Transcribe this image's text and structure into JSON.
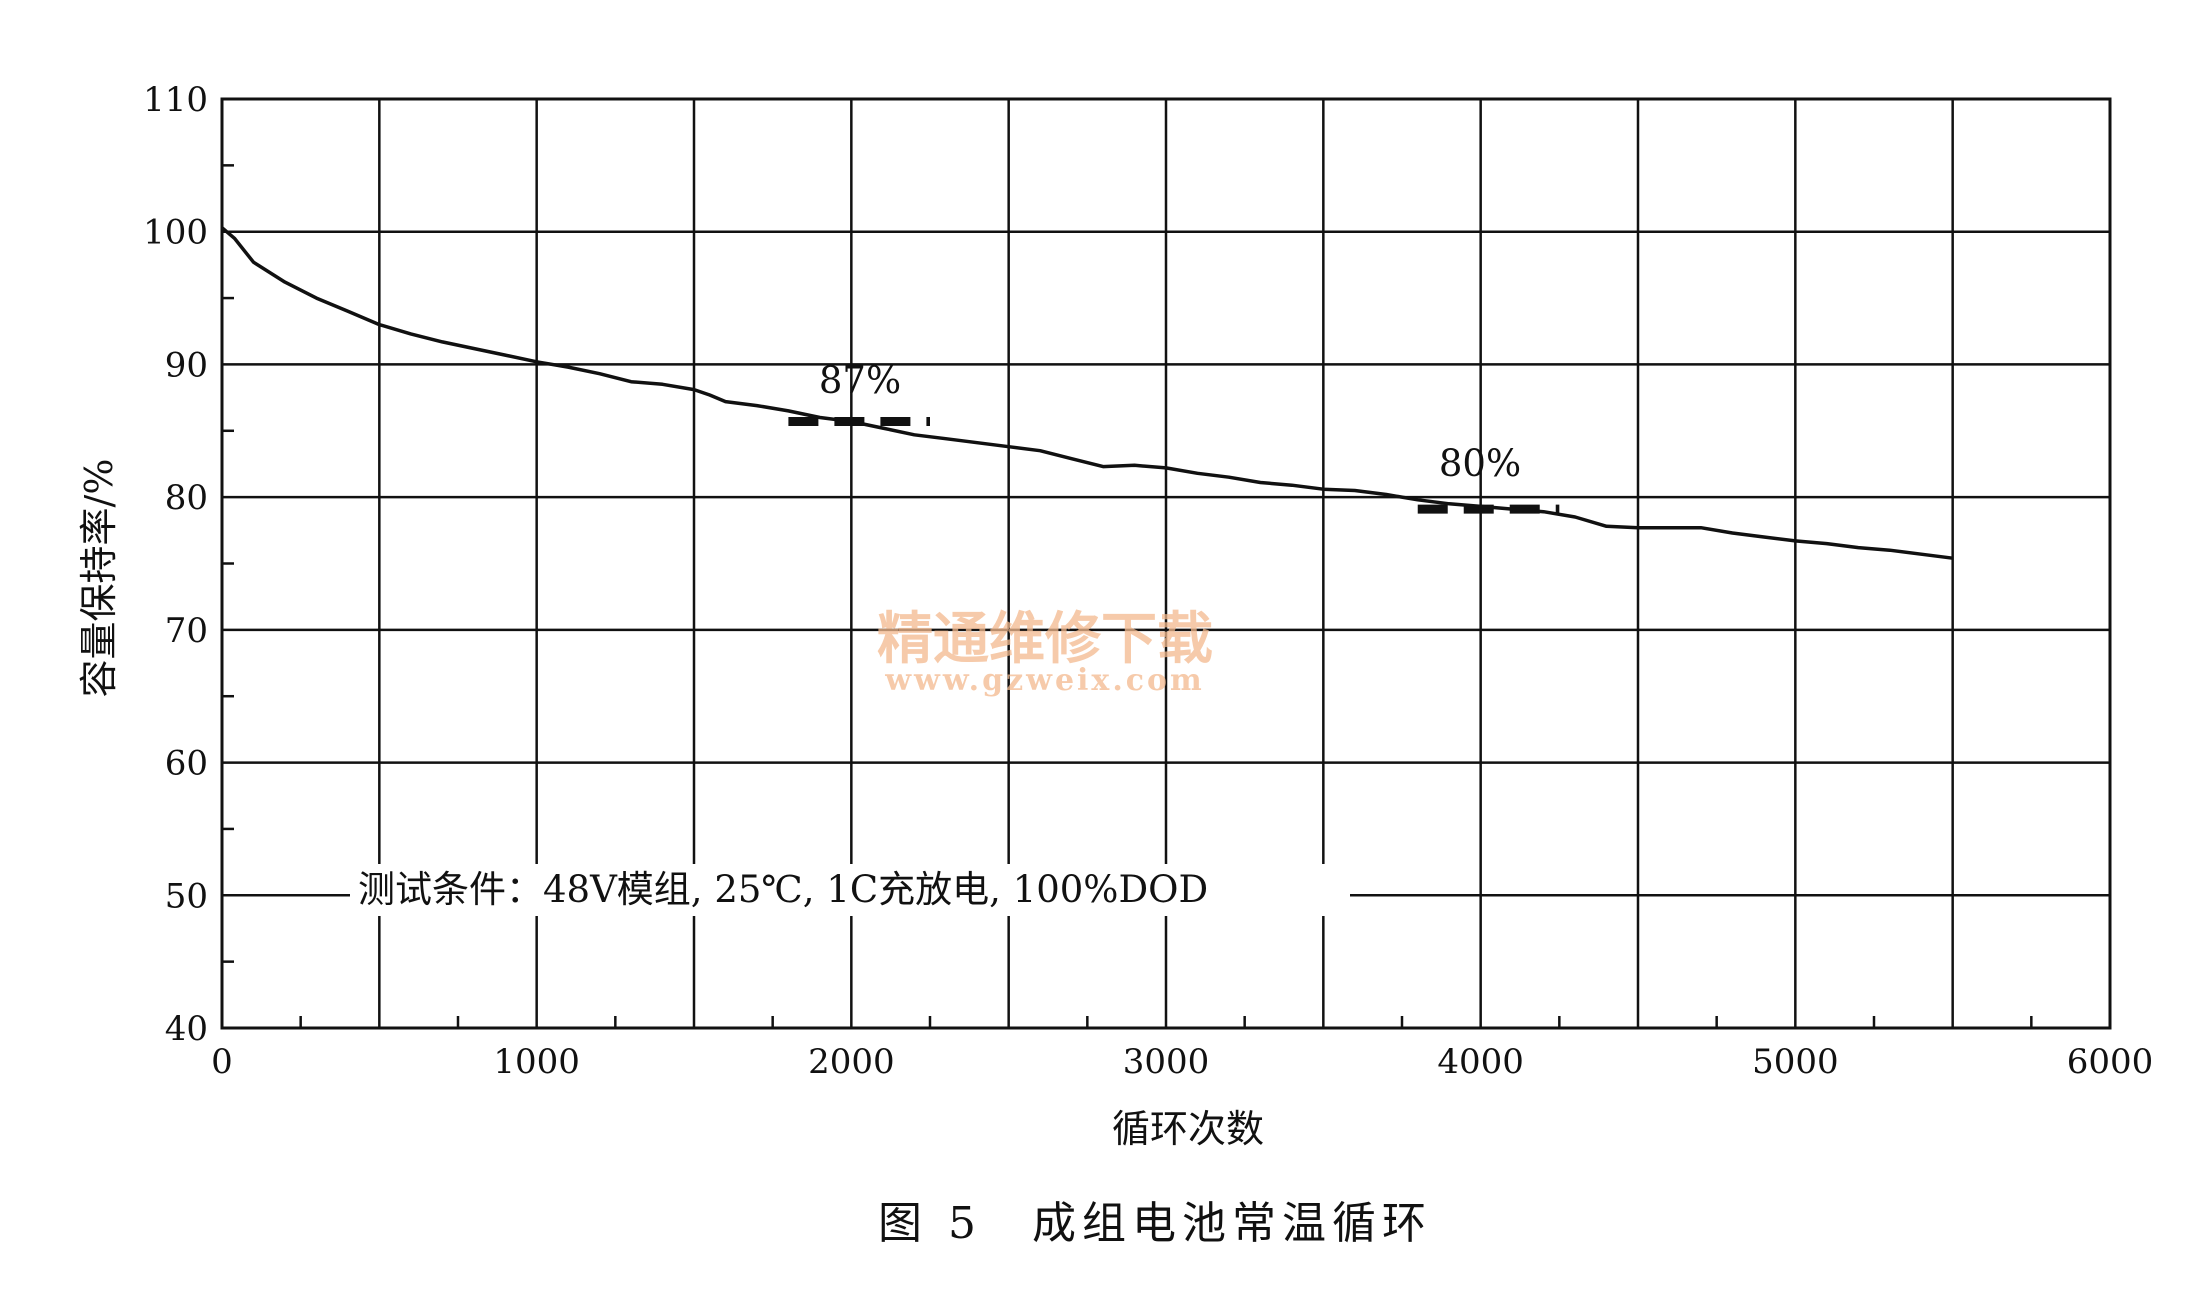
{
  "chart_data": {
    "type": "line",
    "xlabel": "循环次数",
    "ylabel": "容量保持率/%",
    "xlim": [
      0,
      6000
    ],
    "ylim": [
      40,
      110
    ],
    "x_ticks": [
      "0",
      "1000",
      "2000",
      "3000",
      "4000",
      "5000",
      "6000"
    ],
    "y_ticks": [
      "40",
      "50",
      "60",
      "70",
      "80",
      "90",
      "100",
      "110"
    ],
    "grid": true,
    "series": [
      {
        "name": "",
        "x": [
          0,
          40,
          80,
          100,
          200,
          300,
          400,
          500,
          600,
          700,
          800,
          900,
          1000,
          1100,
          1200,
          1300,
          1400,
          1500,
          1550,
          1600,
          1700,
          1800,
          1900,
          2000,
          2100,
          2200,
          2300,
          2400,
          2500,
          2600,
          2700,
          2800,
          2900,
          3000,
          3100,
          3200,
          3300,
          3400,
          3500,
          3600,
          3700,
          3800,
          3900,
          4000,
          4100,
          4200,
          4300,
          4400,
          4500,
          4600,
          4700,
          4800,
          4900,
          5000,
          5100,
          5200,
          5300,
          5400,
          5500
        ],
        "y": [
          100.3,
          99.5,
          98.3,
          97.7,
          96.2,
          95.0,
          94.0,
          93.0,
          92.3,
          91.7,
          91.2,
          90.7,
          90.2,
          89.8,
          89.3,
          88.7,
          88.5,
          88.1,
          87.7,
          87.2,
          86.9,
          86.5,
          86.0,
          85.7,
          85.2,
          84.7,
          84.4,
          84.1,
          83.8,
          83.5,
          82.9,
          82.3,
          82.4,
          82.2,
          81.8,
          81.5,
          81.1,
          80.9,
          80.6,
          80.5,
          80.2,
          79.8,
          79.5,
          79.3,
          79.1,
          78.9,
          78.5,
          77.8,
          77.7,
          77.7,
          77.7,
          77.3,
          77.0,
          76.7,
          76.5,
          76.2,
          76.0,
          75.7,
          75.4
        ]
      }
    ],
    "reference_lines": [
      {
        "label": "87%",
        "x_start": 1800,
        "x_end": 2250,
        "y": 85.7
      },
      {
        "label": "80%",
        "x_start": 3800,
        "x_end": 4250,
        "y": 79.1
      }
    ],
    "annotations": [
      "测试条件：48V模组, 25℃, 1C充放电, 100%DOD"
    ]
  },
  "caption": "图 5　成组电池常温循环",
  "watermark": {
    "text": "精通维修下载",
    "url": "www.gzweix.com",
    "color": "#f3b98e"
  }
}
